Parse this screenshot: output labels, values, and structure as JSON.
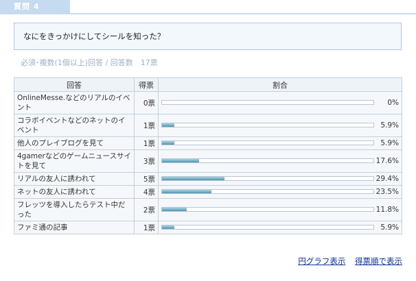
{
  "tab_label": "質問 4",
  "question": "なにをきっかけにしてシールを知った？",
  "meta": "必須･複数(1個以上)回答 / 回答数　17票",
  "table": {
    "headers": [
      "回答",
      "得票",
      "割合"
    ],
    "rows": [
      {
        "answer": "OnlineMesse.などのリアルのイベント",
        "votes": "0票",
        "pct": "0%",
        "fraction": 0.0
      },
      {
        "answer": "コラボイベントなどのネットのイベント",
        "votes": "1票",
        "pct": "5.9%",
        "fraction": 0.059
      },
      {
        "answer": "他人のプレイブログを見て",
        "votes": "1票",
        "pct": "5.9%",
        "fraction": 0.059
      },
      {
        "answer": "4gamerなどのゲームニュースサイトを見て",
        "votes": "3票",
        "pct": "17.6%",
        "fraction": 0.176
      },
      {
        "answer": "リアルの友人に誘われて",
        "votes": "5票",
        "pct": "29.4%",
        "fraction": 0.294
      },
      {
        "answer": "ネットの友人に誘われて",
        "votes": "4票",
        "pct": "23.5%",
        "fraction": 0.235
      },
      {
        "answer": "フレッツを導入したらテスト中だった",
        "votes": "2票",
        "pct": "11.8%",
        "fraction": 0.118
      },
      {
        "answer": "ファミ通の記事",
        "votes": "1票",
        "pct": "5.9%",
        "fraction": 0.059
      }
    ]
  },
  "links": {
    "pie_chart": "円グラフ表示",
    "sort_by_votes": "得票順で表示"
  }
}
